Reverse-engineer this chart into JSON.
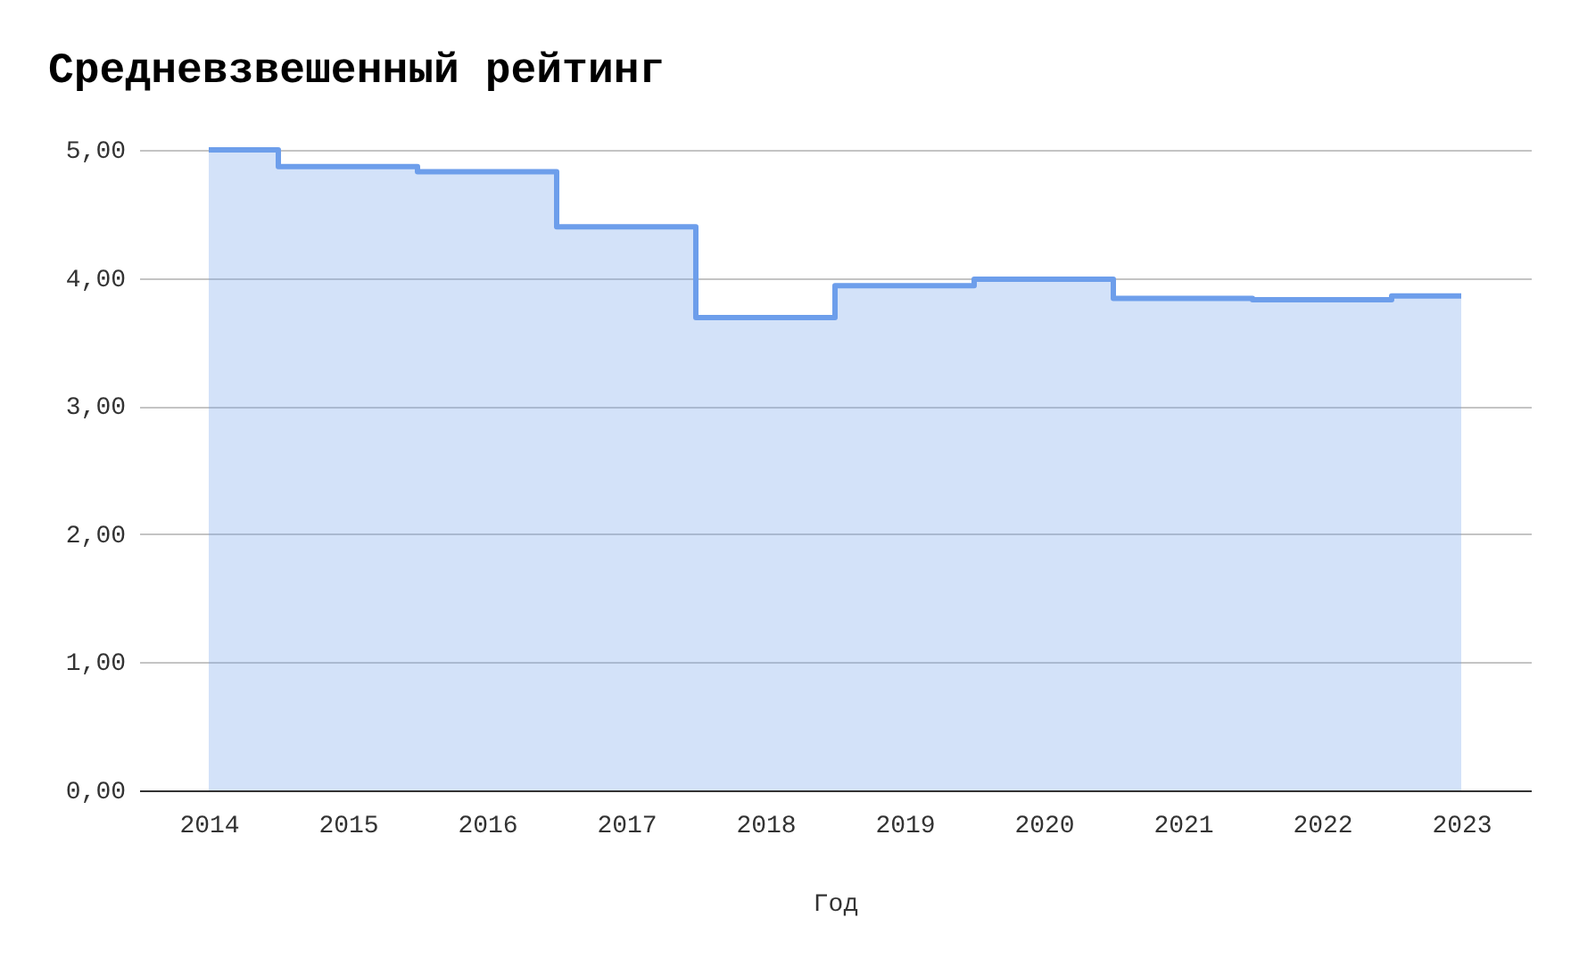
{
  "chart_data": {
    "type": "step",
    "title": "Средневзвешенный рейтинг",
    "xlabel": "Год",
    "categories": [
      "2014",
      "2015",
      "2016",
      "2017",
      "2018",
      "2019",
      "2020",
      "2021",
      "2022",
      "2023"
    ],
    "series": [
      {
        "color": "#6d9eeb",
        "values": [
          5.0,
          4.87,
          4.83,
          4.4,
          3.69,
          3.94,
          3.99,
          3.84,
          3.83,
          3.86
        ]
      }
    ],
    "ylim": [
      0,
      5
    ],
    "yticks": [
      {
        "value": 0,
        "label": "0,00"
      },
      {
        "value": 1,
        "label": "1,00"
      },
      {
        "value": 2,
        "label": "2,00"
      },
      {
        "value": 3,
        "label": "3,00"
      },
      {
        "value": 4,
        "label": "4,00"
      },
      {
        "value": 5,
        "label": "5,00"
      }
    ],
    "grid": "y"
  }
}
